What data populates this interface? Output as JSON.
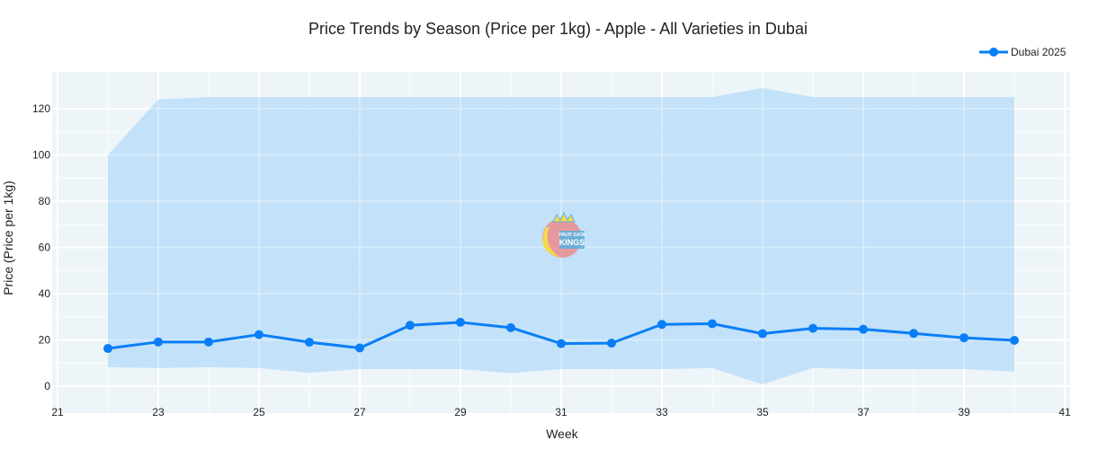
{
  "chart_data": {
    "type": "line",
    "title": "Price Trends by Season (Price per 1kg) - Apple - All Varieties in Dubai",
    "xlabel": "Week",
    "ylabel": "Price (Price per 1kg)",
    "xlim": [
      21,
      41
    ],
    "ylim": [
      -7,
      135
    ],
    "xticks": [
      "21",
      "23",
      "25",
      "27",
      "29",
      "31",
      "33",
      "35",
      "37",
      "39",
      "41"
    ],
    "yticks": [
      "0",
      "20",
      "40",
      "60",
      "80",
      "100",
      "120"
    ],
    "grid": true,
    "legend_position": "top-right",
    "series": [
      {
        "name": "Dubai 2025",
        "color": "#0a7ef7",
        "x": [
          22,
          23,
          24,
          25,
          26,
          27,
          28,
          29,
          30,
          31,
          32,
          33,
          34,
          35,
          36,
          37,
          38,
          39,
          40
        ],
        "y": [
          16.3,
          19.1,
          19.1,
          22.3,
          19.0,
          16.5,
          26.3,
          27.6,
          25.3,
          18.4,
          18.6,
          26.7,
          27.0,
          22.7,
          25.0,
          24.6,
          22.8,
          20.9,
          19.8
        ]
      }
    ],
    "band": {
      "color": "#bfdff8",
      "x": [
        22,
        23,
        24,
        25,
        26,
        27,
        28,
        29,
        30,
        31,
        32,
        33,
        34,
        35,
        36,
        37,
        38,
        39,
        40
      ],
      "upper": [
        100,
        124,
        125,
        125,
        125,
        125,
        125,
        125,
        125,
        125,
        125,
        125,
        125,
        129,
        125,
        125,
        125,
        125,
        125
      ],
      "lower": [
        8.2,
        7.8,
        8.2,
        7.8,
        5.8,
        7.4,
        7.4,
        7.4,
        5.6,
        7.4,
        7.4,
        7.4,
        7.8,
        0.8,
        7.8,
        7.4,
        7.4,
        7.4,
        6.2
      ]
    }
  },
  "logo": {
    "text": "FRUIT DATA KINGS"
  },
  "colors": {
    "plot_bg": "#eef5f9",
    "grid": "#ffffff"
  }
}
